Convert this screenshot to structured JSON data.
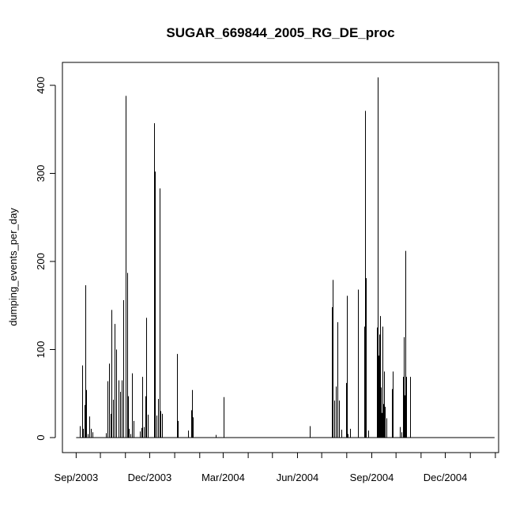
{
  "chart_data": {
    "type": "bar",
    "title": "SUGAR_669844_2005_RG_DE_proc",
    "xlabel": "",
    "ylabel": "dumping_events_per_day",
    "x_range": [
      "2003-08-15",
      "2005-02-05"
    ],
    "ylim": [
      0,
      420
    ],
    "y_ticks": [
      0,
      100,
      200,
      300,
      400
    ],
    "x_ticks": [
      {
        "date": "2003-09-01",
        "label": "Sep/2003"
      },
      {
        "date": "2003-10-01",
        "label": ""
      },
      {
        "date": "2003-11-01",
        "label": ""
      },
      {
        "date": "2003-12-01",
        "label": "Dec/2003"
      },
      {
        "date": "2004-01-01",
        "label": ""
      },
      {
        "date": "2004-02-01",
        "label": ""
      },
      {
        "date": "2004-03-01",
        "label": "Mar/2004"
      },
      {
        "date": "2004-04-01",
        "label": ""
      },
      {
        "date": "2004-05-01",
        "label": ""
      },
      {
        "date": "2004-06-01",
        "label": "Jun/2004"
      },
      {
        "date": "2004-07-01",
        "label": ""
      },
      {
        "date": "2004-08-01",
        "label": ""
      },
      {
        "date": "2004-09-01",
        "label": "Sep/2004"
      },
      {
        "date": "2004-10-01",
        "label": ""
      },
      {
        "date": "2004-11-01",
        "label": ""
      },
      {
        "date": "2004-12-01",
        "label": "Dec/2004"
      },
      {
        "date": "2005-01-01",
        "label": ""
      },
      {
        "date": "2005-02-01",
        "label": ""
      }
    ],
    "grid": false,
    "series": [
      {
        "color": "#000000",
        "points": [
          {
            "x": "2003-09-06",
            "y": 13
          },
          {
            "x": "2003-09-08",
            "y": 82
          },
          {
            "x": "2003-09-09",
            "y": 10
          },
          {
            "x": "2003-09-11",
            "y": 37
          },
          {
            "x": "2003-09-12",
            "y": 173
          },
          {
            "x": "2003-09-13",
            "y": 54
          },
          {
            "x": "2003-09-15",
            "y": 4
          },
          {
            "x": "2003-09-17",
            "y": 24
          },
          {
            "x": "2003-09-19",
            "y": 10
          },
          {
            "x": "2003-09-21",
            "y": 6
          },
          {
            "x": "2003-10-08",
            "y": 5
          },
          {
            "x": "2003-10-10",
            "y": 64
          },
          {
            "x": "2003-10-12",
            "y": 84
          },
          {
            "x": "2003-10-14",
            "y": 27
          },
          {
            "x": "2003-10-15",
            "y": 145
          },
          {
            "x": "2003-10-17",
            "y": 43
          },
          {
            "x": "2003-10-19",
            "y": 129
          },
          {
            "x": "2003-10-21",
            "y": 100
          },
          {
            "x": "2003-10-23",
            "y": 65
          },
          {
            "x": "2003-10-25",
            "y": 52
          },
          {
            "x": "2003-10-27",
            "y": 65
          },
          {
            "x": "2003-10-29",
            "y": 156
          },
          {
            "x": "2003-11-01",
            "y": 388
          },
          {
            "x": "2003-11-03",
            "y": 187
          },
          {
            "x": "2003-11-04",
            "y": 47
          },
          {
            "x": "2003-11-05",
            "y": 10
          },
          {
            "x": "2003-11-07",
            "y": 4
          },
          {
            "x": "2003-11-09",
            "y": 73
          },
          {
            "x": "2003-11-11",
            "y": 19
          },
          {
            "x": "2003-11-19",
            "y": 7
          },
          {
            "x": "2003-11-21",
            "y": 11
          },
          {
            "x": "2003-11-22",
            "y": 69
          },
          {
            "x": "2003-11-24",
            "y": 12
          },
          {
            "x": "2003-11-26",
            "y": 47
          },
          {
            "x": "2003-11-27",
            "y": 136
          },
          {
            "x": "2003-11-29",
            "y": 26
          },
          {
            "x": "2003-12-06",
            "y": 357
          },
          {
            "x": "2003-12-07",
            "y": 302
          },
          {
            "x": "2003-12-09",
            "y": 25
          },
          {
            "x": "2003-12-11",
            "y": 44
          },
          {
            "x": "2003-12-13",
            "y": 283
          },
          {
            "x": "2003-12-14",
            "y": 30
          },
          {
            "x": "2003-12-16",
            "y": 27
          },
          {
            "x": "2004-01-04",
            "y": 95
          },
          {
            "x": "2004-01-05",
            "y": 19
          },
          {
            "x": "2004-01-18",
            "y": 8
          },
          {
            "x": "2004-01-21",
            "y": 31
          },
          {
            "x": "2004-01-22",
            "y": 54
          },
          {
            "x": "2004-01-23",
            "y": 23
          },
          {
            "x": "2004-02-21",
            "y": 3
          },
          {
            "x": "2004-03-02",
            "y": 46
          },
          {
            "x": "2004-06-16",
            "y": 13
          },
          {
            "x": "2004-07-14",
            "y": 148
          },
          {
            "x": "2004-07-15",
            "y": 179
          },
          {
            "x": "2004-07-17",
            "y": 42
          },
          {
            "x": "2004-07-18",
            "y": 58
          },
          {
            "x": "2004-07-20",
            "y": 131
          },
          {
            "x": "2004-07-22",
            "y": 42
          },
          {
            "x": "2004-07-25",
            "y": 9
          },
          {
            "x": "2004-07-31",
            "y": 62
          },
          {
            "x": "2004-08-01",
            "y": 161
          },
          {
            "x": "2004-08-02",
            "y": 4
          },
          {
            "x": "2004-08-05",
            "y": 10
          },
          {
            "x": "2004-08-15",
            "y": 168
          },
          {
            "x": "2004-08-23",
            "y": 126
          },
          {
            "x": "2004-08-24",
            "y": 371
          },
          {
            "x": "2004-08-25",
            "y": 181
          },
          {
            "x": "2004-08-28",
            "y": 8
          },
          {
            "x": "2004-09-07",
            "y": 125
          },
          {
            "x": "2004-09-08",
            "y": 409
          },
          {
            "x": "2004-09-09",
            "y": 93
          },
          {
            "x": "2004-09-10",
            "y": 117
          },
          {
            "x": "2004-09-11",
            "y": 138
          },
          {
            "x": "2004-09-12",
            "y": 57
          },
          {
            "x": "2004-09-13",
            "y": 28
          },
          {
            "x": "2004-09-14",
            "y": 126
          },
          {
            "x": "2004-09-15",
            "y": 38
          },
          {
            "x": "2004-09-16",
            "y": 75
          },
          {
            "x": "2004-09-17",
            "y": 35
          },
          {
            "x": "2004-09-19",
            "y": 22
          },
          {
            "x": "2004-09-26",
            "y": 55
          },
          {
            "x": "2004-09-27",
            "y": 75
          },
          {
            "x": "2004-10-06",
            "y": 12
          },
          {
            "x": "2004-10-08",
            "y": 6
          },
          {
            "x": "2004-10-10",
            "y": 69
          },
          {
            "x": "2004-10-11",
            "y": 114
          },
          {
            "x": "2004-10-12",
            "y": 48
          },
          {
            "x": "2004-10-13",
            "y": 212
          },
          {
            "x": "2004-10-14",
            "y": 69
          },
          {
            "x": "2004-10-18",
            "y": 69
          }
        ]
      }
    ]
  }
}
